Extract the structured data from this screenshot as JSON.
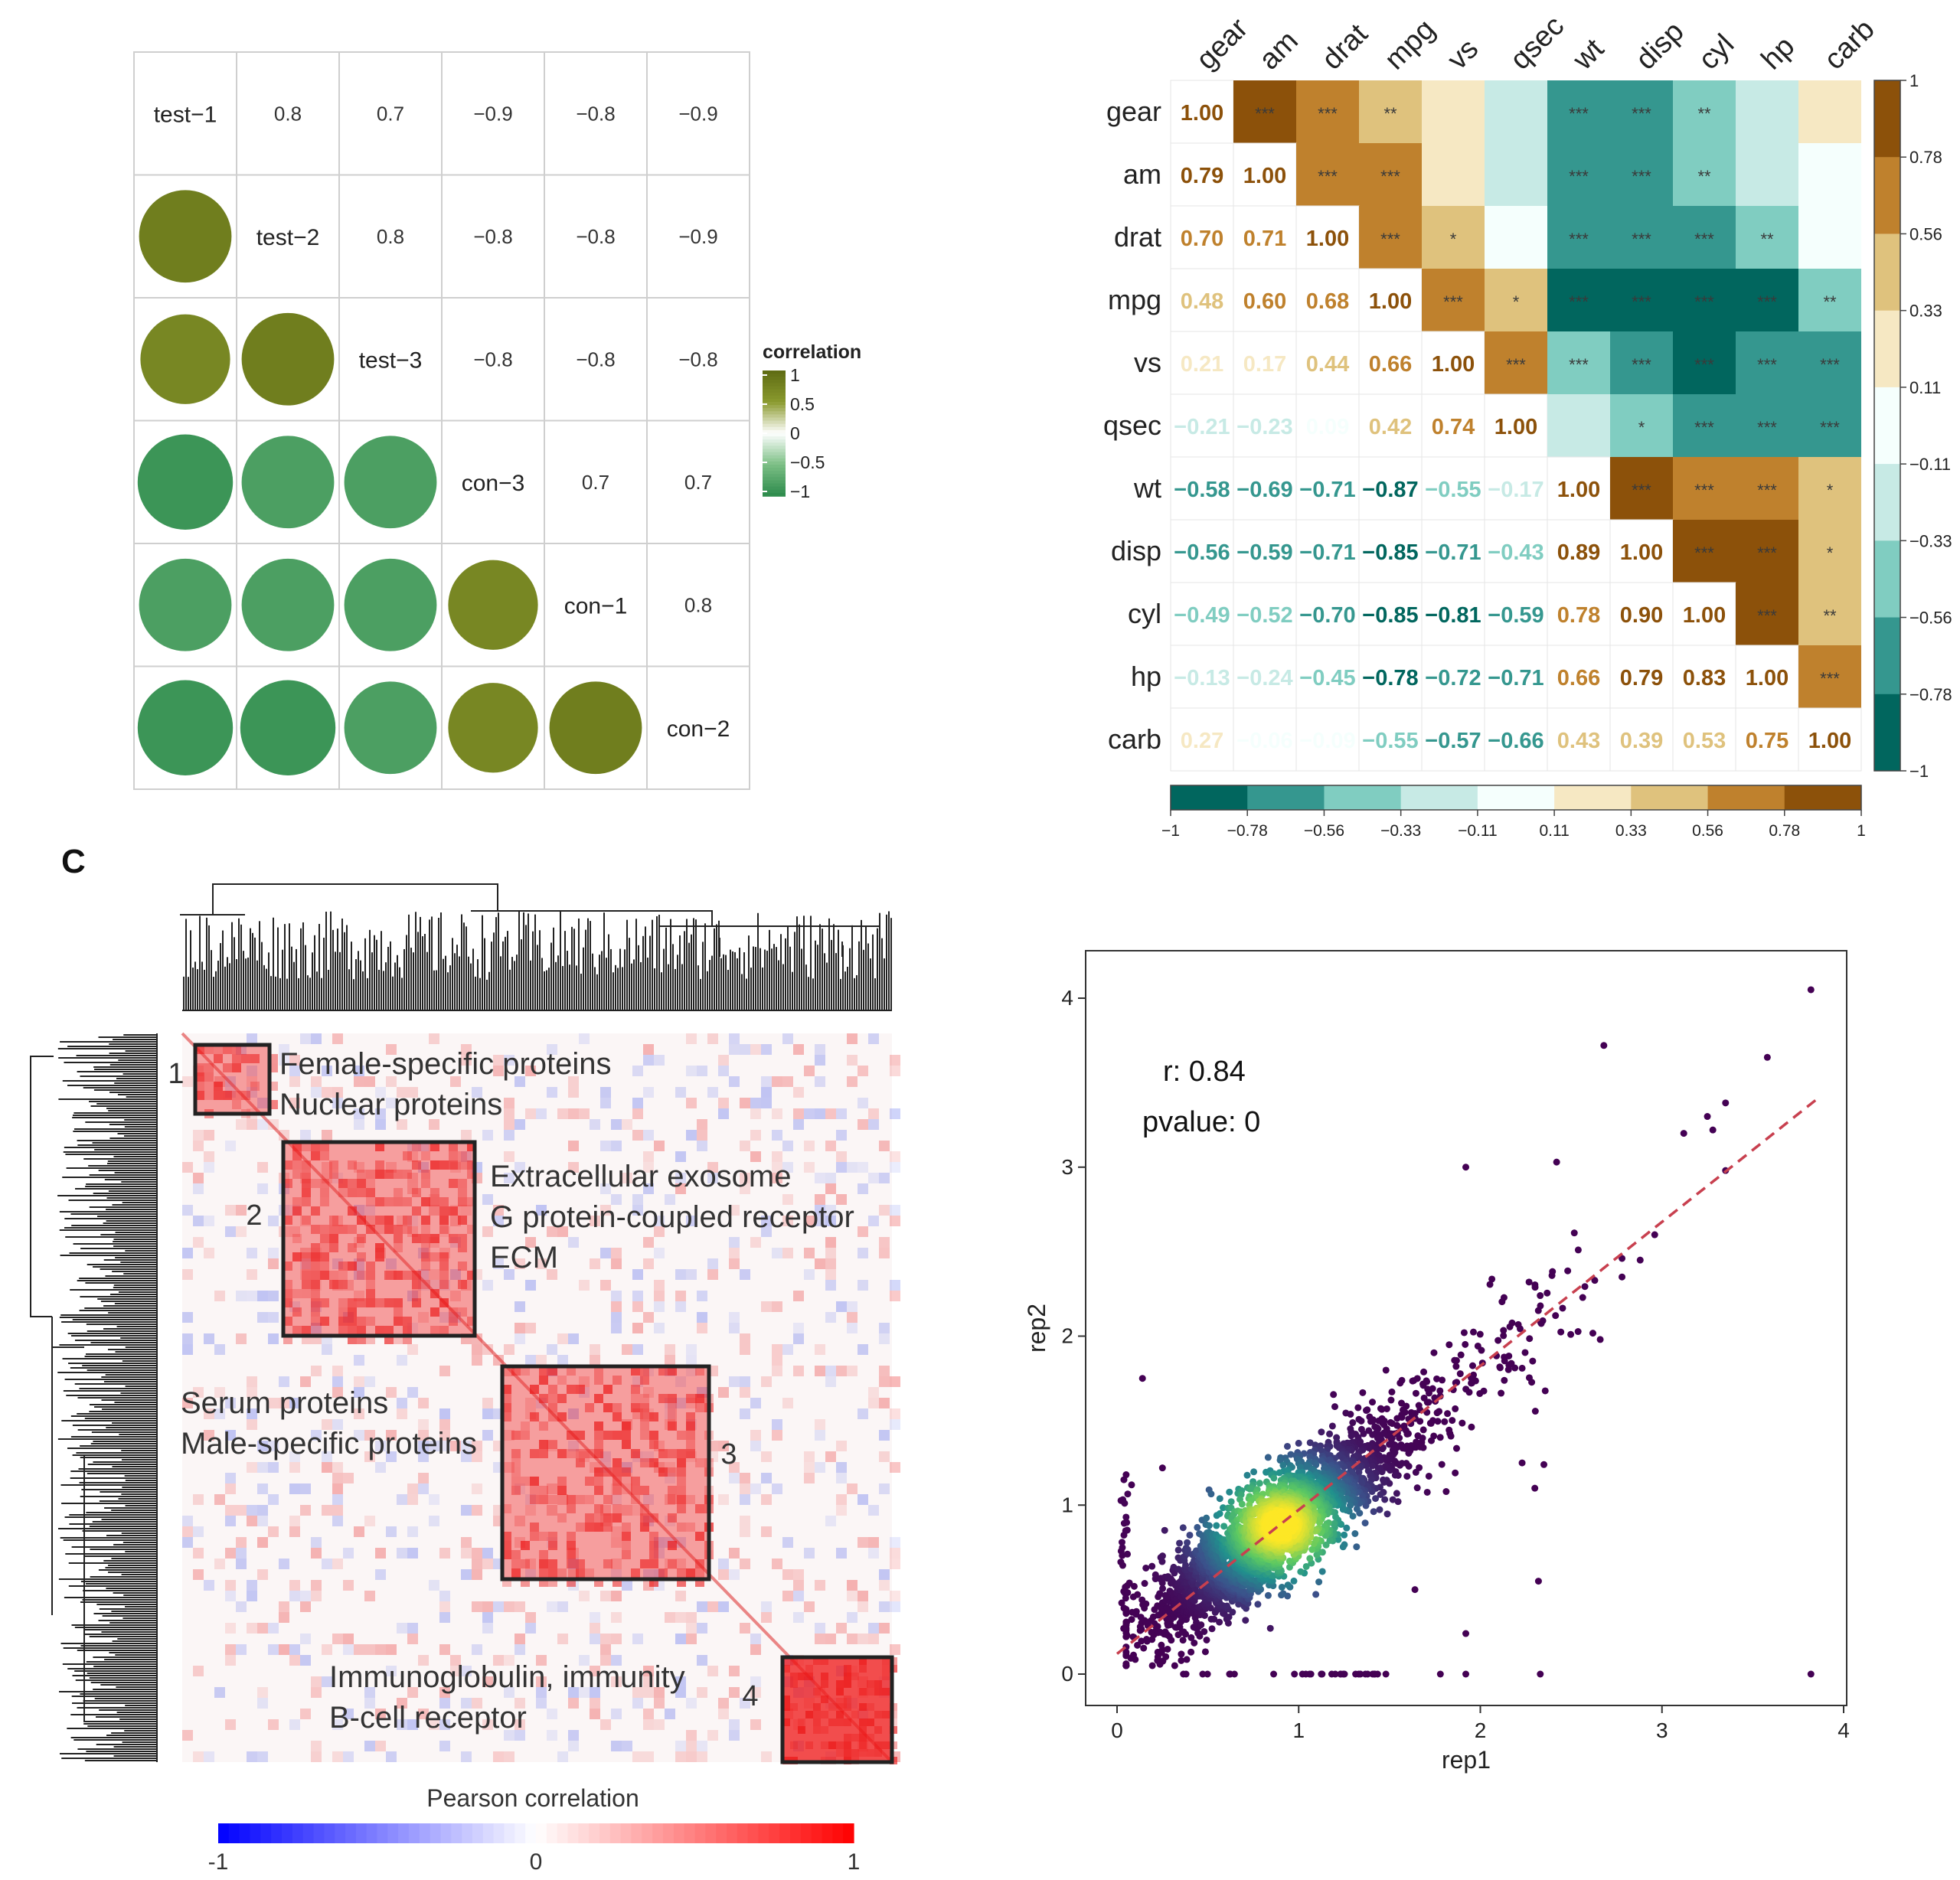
{
  "chart_data": [
    {
      "panel": "top-left",
      "type": "heatmap",
      "labels": [
        "test−1",
        "test−2",
        "test−3",
        "con−3",
        "con−1",
        "con−2"
      ],
      "upper_values": [
        [
          "",
          "0.8",
          "0.7",
          "−0.9",
          "−0.8",
          "−0.9"
        ],
        [
          "",
          "",
          "0.8",
          "−0.8",
          "−0.8",
          "−0.9"
        ],
        [
          "",
          "",
          "",
          "−0.8",
          "−0.8",
          "−0.8"
        ],
        [
          "",
          "",
          "",
          "",
          "0.7",
          "0.7"
        ],
        [
          "",
          "",
          "",
          "",
          "",
          "0.8"
        ],
        [
          "",
          "",
          "",
          "",
          "",
          ""
        ]
      ],
      "matrix": [
        [
          1,
          0.8,
          0.7,
          -0.9,
          -0.8,
          -0.9
        ],
        [
          0.8,
          1,
          0.8,
          -0.8,
          -0.8,
          -0.9
        ],
        [
          0.7,
          0.8,
          1,
          -0.8,
          -0.8,
          -0.8
        ],
        [
          -0.9,
          -0.8,
          -0.8,
          1,
          0.7,
          0.7
        ],
        [
          -0.8,
          -0.8,
          -0.8,
          0.7,
          1,
          0.8
        ],
        [
          -0.9,
          -0.9,
          -0.8,
          0.7,
          0.8,
          1
        ]
      ],
      "legend": {
        "title": "correlation",
        "ticks": [
          "1",
          "0.5",
          "0",
          "−0.5",
          "−1"
        ],
        "colors": [
          "#5e6b13",
          "#8a9a2e",
          "#ffffff",
          "#7cbf85",
          "#2c8a4b"
        ]
      }
    },
    {
      "panel": "top-right",
      "type": "heatmap",
      "labels": [
        "gear",
        "am",
        "drat",
        "mpg",
        "vs",
        "qsec",
        "wt",
        "disp",
        "cyl",
        "hp",
        "carb"
      ],
      "lower_values": [
        [
          "1.00"
        ],
        [
          "0.79",
          "1.00"
        ],
        [
          "0.70",
          "0.71",
          "1.00"
        ],
        [
          "0.48",
          "0.60",
          "0.68",
          "1.00"
        ],
        [
          "0.21",
          "0.17",
          "0.44",
          "0.66",
          "1.00"
        ],
        [
          "−0.21",
          "−0.23",
          "0.09",
          "0.42",
          "0.74",
          "1.00"
        ],
        [
          "−0.58",
          "−0.69",
          "−0.71",
          "−0.87",
          "−0.55",
          "−0.17",
          "1.00"
        ],
        [
          "−0.56",
          "−0.59",
          "−0.71",
          "−0.85",
          "−0.71",
          "−0.43",
          "0.89",
          "1.00"
        ],
        [
          "−0.49",
          "−0.52",
          "−0.70",
          "−0.85",
          "−0.81",
          "−0.59",
          "0.78",
          "0.90",
          "1.00"
        ],
        [
          "−0.13",
          "−0.24",
          "−0.45",
          "−0.78",
          "−0.72",
          "−0.71",
          "0.66",
          "0.79",
          "0.83",
          "1.00"
        ],
        [
          "0.27",
          "−0.06",
          "−0.09",
          "−0.55",
          "−0.57",
          "−0.66",
          "0.43",
          "0.39",
          "0.53",
          "0.75",
          "1.00"
        ]
      ],
      "stars": [
        [
          "",
          "***",
          "***",
          "**",
          "",
          "",
          "***",
          "***",
          "**",
          "",
          ""
        ],
        [
          "",
          "",
          "***",
          "***",
          "",
          "",
          "***",
          "***",
          "**",
          "",
          ""
        ],
        [
          "",
          "",
          "",
          "***",
          "*",
          "",
          "***",
          "***",
          "***",
          "**",
          ""
        ],
        [
          "",
          "",
          "",
          "",
          "***",
          "*",
          "***",
          "***",
          "***",
          "***",
          "**"
        ],
        [
          "",
          "",
          "",
          "",
          "",
          "***",
          "***",
          "***",
          "***",
          "***",
          "***"
        ],
        [
          "",
          "",
          "",
          "",
          "",
          "",
          "",
          "*",
          "***",
          "***",
          "***"
        ],
        [
          "",
          "",
          "",
          "",
          "",
          "",
          "",
          "***",
          "***",
          "***",
          "*"
        ],
        [
          "",
          "",
          "",
          "",
          "",
          "",
          "",
          "",
          "***",
          "***",
          "*"
        ],
        [
          "",
          "",
          "",
          "",
          "",
          "",
          "",
          "",
          "",
          "***",
          "**"
        ],
        [
          "",
          "",
          "",
          "",
          "",
          "",
          "",
          "",
          "",
          "",
          "***"
        ],
        [
          "",
          "",
          "",
          "",
          "",
          "",
          "",
          "",
          "",
          "",
          ""
        ]
      ],
      "color_breaks": [
        "−1",
        "−0.78",
        "−0.56",
        "−0.33",
        "−0.11",
        "0.11",
        "0.33",
        "0.56",
        "0.78",
        "1"
      ],
      "colors": [
        "#01665e",
        "#35978f",
        "#80cdc1",
        "#c7eae5",
        "#f5fffd",
        "#f6e8c3",
        "#dfc27d",
        "#bf812d",
        "#8c510a"
      ]
    },
    {
      "panel": "bottom-left",
      "type": "heatmap",
      "panel_letter": "C",
      "clusters": [
        {
          "number": "1",
          "lines": [
            "Female-specific proteins",
            "Nuclear proteins"
          ]
        },
        {
          "number": "2",
          "lines": [
            "Extracellular exosome",
            "G protein-coupled receptor",
            "ECM"
          ]
        },
        {
          "number": "3",
          "lines": [
            "Serum proteins",
            "Male-specific proteins"
          ]
        },
        {
          "number": "4",
          "lines": [
            "Immunoglobulin, immunity",
            "B-cell receptor"
          ]
        }
      ],
      "legend": {
        "title": "Pearson correlation",
        "ticks": [
          "-1",
          "0",
          "1"
        ],
        "colors": [
          "#0000ff",
          "#ffffff",
          "#ff0000"
        ]
      }
    },
    {
      "panel": "bottom-right",
      "type": "scatter",
      "xlabel": "rep1",
      "ylabel": "rep2",
      "xlim": [
        0,
        4
      ],
      "ylim": [
        0,
        4.2
      ],
      "xticks": [
        "0",
        "1",
        "2",
        "3",
        "4"
      ],
      "yticks": [
        "0",
        "1",
        "2",
        "3",
        "4"
      ],
      "annotations": [
        "r: 0.84",
        "pvalue: 0"
      ],
      "fit_line": {
        "x": [
          0,
          3.85
        ],
        "y": [
          0.12,
          3.4
        ],
        "color": "#c8404f"
      },
      "point_color": "#440154",
      "density_colors": [
        "#440154",
        "#3b528b",
        "#21908d",
        "#5dc962",
        "#fde725"
      ],
      "outliers": [
        {
          "x": 3.82,
          "y": 4.05
        },
        {
          "x": 2.68,
          "y": 3.72
        },
        {
          "x": 3.58,
          "y": 3.65
        },
        {
          "x": 3.35,
          "y": 3.38
        },
        {
          "x": 3.25,
          "y": 3.3
        },
        {
          "x": 3.12,
          "y": 3.2
        },
        {
          "x": 3.28,
          "y": 3.22
        },
        {
          "x": 1.92,
          "y": 3.0
        },
        {
          "x": 2.42,
          "y": 3.03
        },
        {
          "x": 3.35,
          "y": 2.98
        },
        {
          "x": 2.96,
          "y": 2.6
        },
        {
          "x": 2.78,
          "y": 2.46
        },
        {
          "x": 2.88,
          "y": 2.45
        },
        {
          "x": 2.63,
          "y": 2.33
        },
        {
          "x": 2.78,
          "y": 2.35
        },
        {
          "x": 2.66,
          "y": 1.98
        },
        {
          "x": 0.14,
          "y": 1.75
        },
        {
          "x": 0.05,
          "y": 1.18
        },
        {
          "x": 0.08,
          "y": 1.12
        },
        {
          "x": 0.25,
          "y": 1.22
        },
        {
          "x": 2.23,
          "y": 1.25
        },
        {
          "x": 2.35,
          "y": 1.24
        },
        {
          "x": 2.3,
          "y": 1.1
        },
        {
          "x": 1.64,
          "y": 0.5
        },
        {
          "x": 2.32,
          "y": 0.55
        },
        {
          "x": 1.92,
          "y": 0.24
        },
        {
          "x": 3.82,
          "y": 0.0
        },
        {
          "x": 2.33,
          "y": 0.0
        },
        {
          "x": 1.92,
          "y": 0.0
        },
        {
          "x": 1.78,
          "y": 0.0
        },
        {
          "x": 1.42,
          "y": 0.0
        },
        {
          "x": 1.48,
          "y": 0.0
        }
      ]
    }
  ]
}
